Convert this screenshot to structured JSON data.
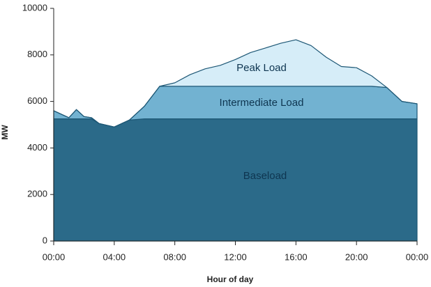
{
  "chart_data": {
    "type": "stacked_area",
    "x_label": "Hour of day",
    "y_label": "MW",
    "x": [
      0,
      1,
      1.5,
      2,
      2.5,
      3,
      4,
      5,
      6,
      7,
      8,
      9,
      10,
      11,
      12,
      13,
      14,
      15,
      16,
      17,
      18,
      19,
      20,
      21,
      22,
      23,
      24
    ],
    "series": [
      {
        "name": "Baseload",
        "color": "#2b6a89",
        "values": [
          5250,
          5250,
          5250,
          5250,
          5250,
          5050,
          4900,
          5200,
          5250,
          5250,
          5250,
          5250,
          5250,
          5250,
          5250,
          5250,
          5250,
          5250,
          5250,
          5250,
          5250,
          5250,
          5250,
          5250,
          5250,
          5250,
          5250
        ]
      },
      {
        "name": "Intermediate Load",
        "color": "#72b2d1",
        "values": [
          350,
          50,
          400,
          100,
          50,
          0,
          0,
          0,
          550,
          1400,
          1400,
          1400,
          1400,
          1400,
          1400,
          1400,
          1400,
          1400,
          1400,
          1400,
          1400,
          1400,
          1400,
          1400,
          1350,
          750,
          650
        ]
      },
      {
        "name": "Peak Load",
        "color": "#d6edf8",
        "values": [
          0,
          0,
          0,
          0,
          0,
          0,
          0,
          0,
          0,
          0,
          150,
          500,
          750,
          900,
          1150,
          1450,
          1650,
          1850,
          2000,
          1750,
          1250,
          850,
          800,
          450,
          0,
          0,
          0
        ]
      }
    ],
    "line_color": "#1d5775",
    "xlim": [
      0,
      24
    ],
    "xticks": [
      {
        "value": 0,
        "label": "00:00"
      },
      {
        "value": 4,
        "label": "04:00"
      },
      {
        "value": 8,
        "label": "08:00"
      },
      {
        "value": 12,
        "label": "12:00"
      },
      {
        "value": 16,
        "label": "16:00"
      },
      {
        "value": 20,
        "label": "20:00"
      },
      {
        "value": 24,
        "label": "00:00"
      }
    ],
    "ylim": [
      0,
      10000
    ],
    "yticks": [
      0,
      2000,
      4000,
      6000,
      8000,
      10000
    ]
  }
}
